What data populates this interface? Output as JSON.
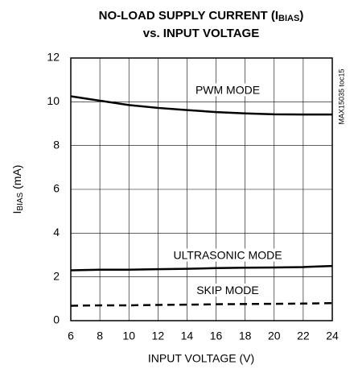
{
  "chart_data": {
    "type": "line",
    "title_parts": [
      "NO-LOAD SUPPLY CURRENT (I",
      "BIAS",
      ")"
    ],
    "subtitle": "vs. INPUT VOLTAGE",
    "xlabel": "INPUT VOLTAGE (V)",
    "ylabel_parts": [
      "I",
      "BIAS",
      " (mA)"
    ],
    "annotation": "MAX15035 toc15",
    "x": [
      6,
      8,
      10,
      12,
      14,
      16,
      18,
      20,
      22,
      24
    ],
    "series": [
      {
        "name": "PWM MODE",
        "color": "#000000",
        "dashed": false,
        "values": [
          10.25,
          10.05,
          9.85,
          9.72,
          9.62,
          9.53,
          9.47,
          9.43,
          9.42,
          9.42
        ]
      },
      {
        "name": "ULTRASONIC MODE",
        "color": "#000000",
        "dashed": false,
        "values": [
          2.3,
          2.33,
          2.33,
          2.35,
          2.37,
          2.4,
          2.42,
          2.43,
          2.45,
          2.5
        ]
      },
      {
        "name": "SKIP MODE",
        "color": "#000000",
        "dashed": true,
        "values": [
          0.68,
          0.7,
          0.7,
          0.72,
          0.73,
          0.75,
          0.76,
          0.77,
          0.78,
          0.8
        ]
      }
    ],
    "xlim": [
      6,
      24
    ],
    "xticks": [
      6,
      8,
      10,
      12,
      14,
      16,
      18,
      20,
      22,
      24
    ],
    "ylim": [
      0,
      12
    ],
    "yticks": [
      0,
      2,
      4,
      6,
      8,
      10,
      12
    ],
    "grid": true
  }
}
